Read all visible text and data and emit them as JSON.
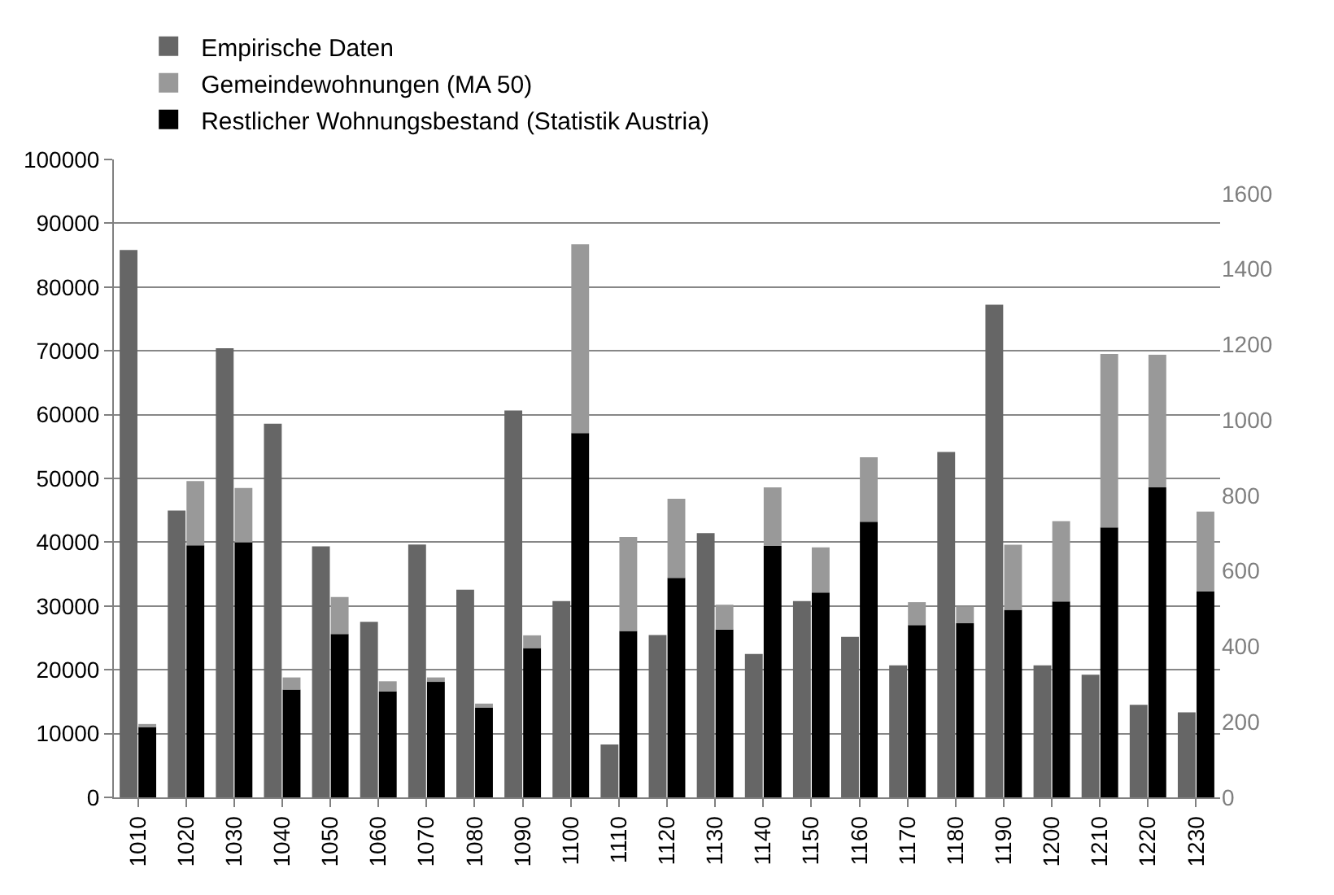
{
  "chart_data": {
    "type": "bar",
    "stacked": true,
    "categories": [
      "1010",
      "1020",
      "1030",
      "1040",
      "1050",
      "1060",
      "1070",
      "1080",
      "1090",
      "1100",
      "1110",
      "1120",
      "1130",
      "1140",
      "1150",
      "1160",
      "1170",
      "1180",
      "1190",
      "1200",
      "1210",
      "1220",
      "1230"
    ],
    "series": [
      {
        "name": "Empirische Daten",
        "color": "#666666",
        "axis": "y2",
        "values": [
          1450,
          760,
          1190,
          990,
          665,
          465,
          670,
          550,
          1025,
          520,
          140,
          430,
          700,
          380,
          520,
          425,
          350,
          915,
          1305,
          350,
          325,
          245,
          225
        ]
      },
      {
        "name": "Restlicher Wohnungsbestand (Statistik Austria)",
        "color": "#000000",
        "values": [
          11100,
          39500,
          40000,
          16900,
          25600,
          16600,
          18100,
          14100,
          23400,
          57100,
          26100,
          34400,
          26300,
          39400,
          32100,
          43200,
          27000,
          27300,
          29400,
          30700,
          42300,
          48600,
          32300
        ]
      },
      {
        "name": "Gemeindewohnungen (MA 50)",
        "color": "#999999",
        "values": [
          400,
          10100,
          8500,
          1900,
          5800,
          1600,
          700,
          600,
          2000,
          29600,
          14700,
          12400,
          3900,
          9200,
          7100,
          10100,
          3600,
          2600,
          10200,
          12600,
          27200,
          20800,
          12500
        ]
      }
    ],
    "ylim": [
      0,
      100000
    ],
    "yticks": [
      0,
      10000,
      20000,
      30000,
      40000,
      50000,
      60000,
      70000,
      80000,
      90000,
      100000
    ],
    "y2lim": [
      0,
      1690
    ],
    "y2ticks": [
      0,
      200,
      400,
      600,
      800,
      1000,
      1200,
      1400,
      1600
    ],
    "grid": "y",
    "legend": "top"
  }
}
